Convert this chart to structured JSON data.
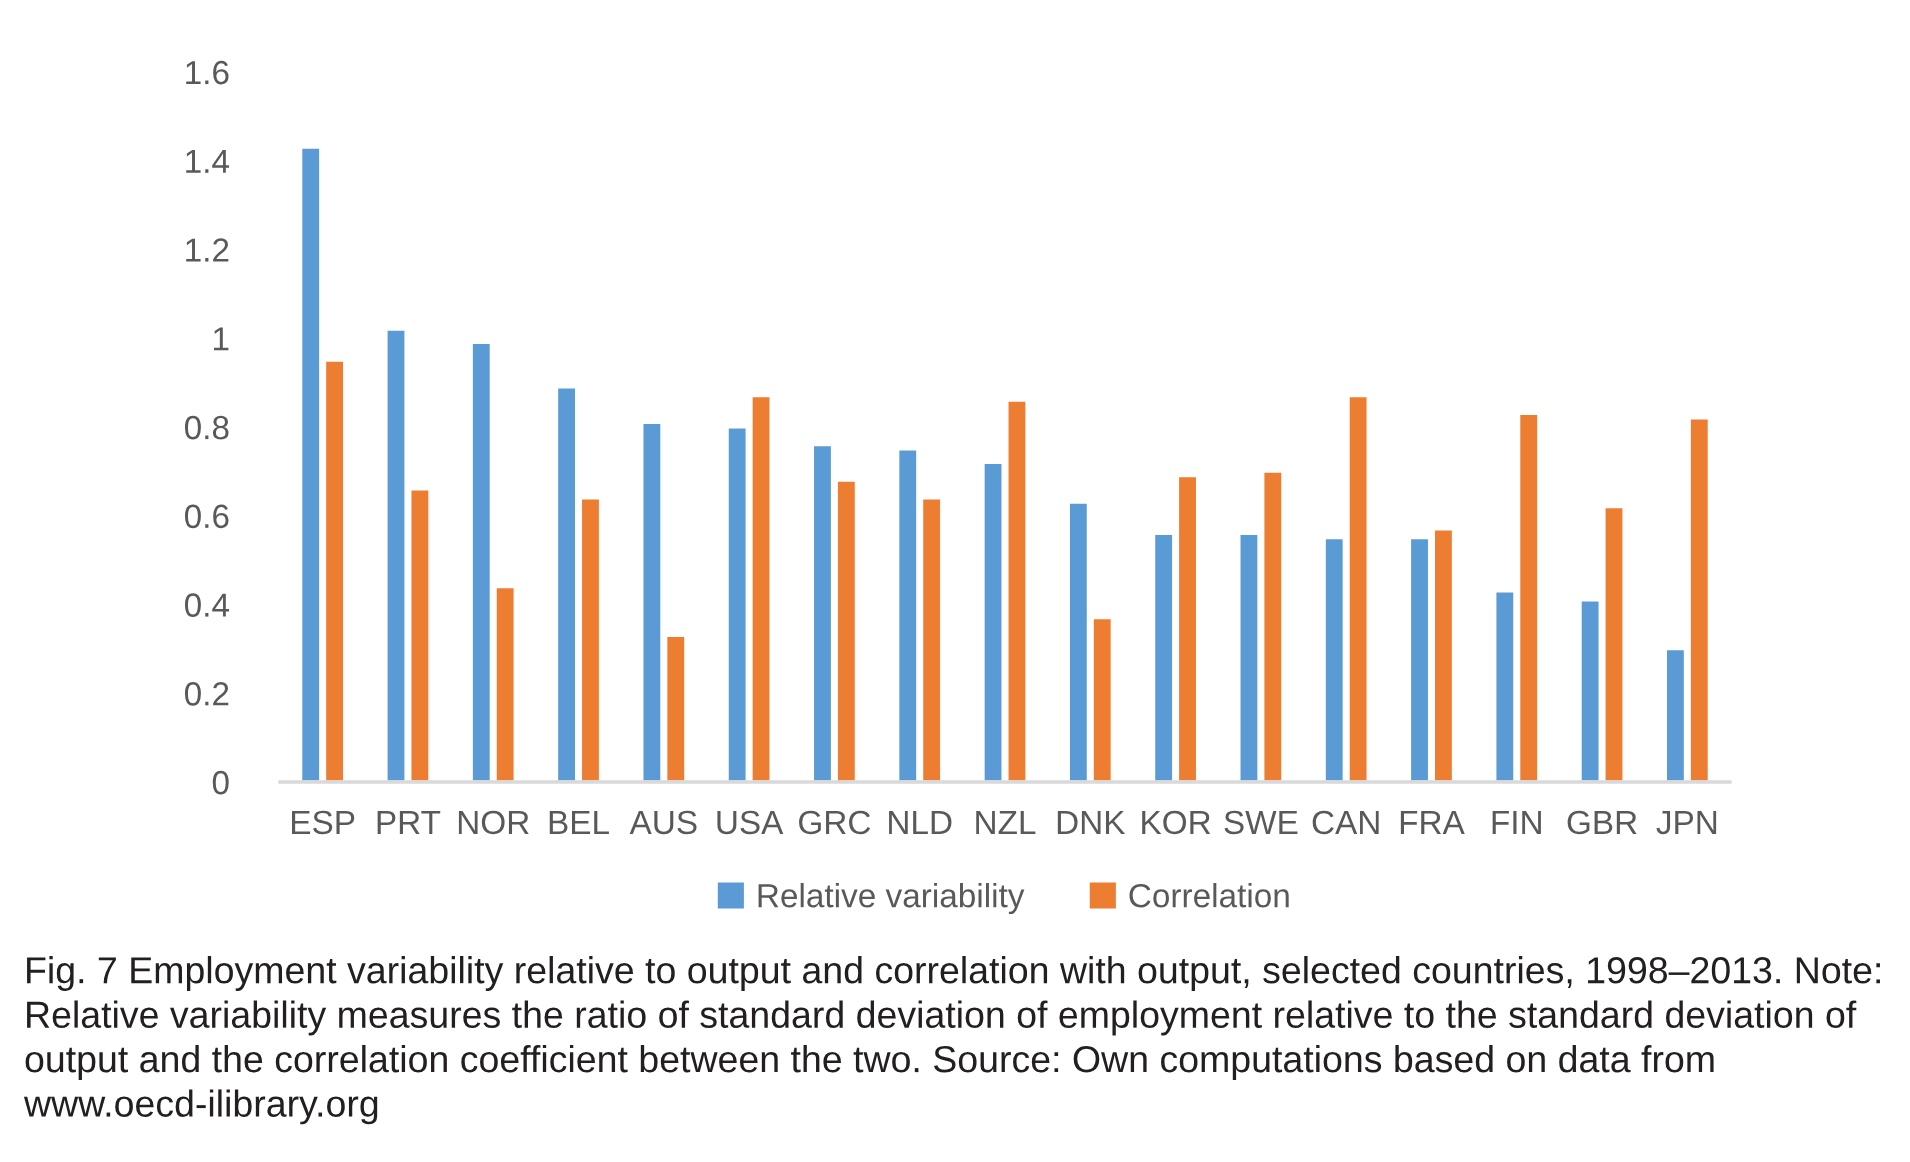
{
  "chart_data": {
    "type": "bar",
    "categories": [
      "ESP",
      "PRT",
      "NOR",
      "BEL",
      "AUS",
      "USA",
      "GRC",
      "NLD",
      "NZL",
      "DNK",
      "KOR",
      "SWE",
      "CAN",
      "FRA",
      "FIN",
      "GBR",
      "JPN"
    ],
    "series": [
      {
        "name": "Relative variability",
        "color": "#5b9bd5",
        "values": [
          1.43,
          1.02,
          0.99,
          0.89,
          0.81,
          0.8,
          0.76,
          0.75,
          0.72,
          0.63,
          0.56,
          0.56,
          0.55,
          0.55,
          0.43,
          0.41,
          0.3
        ]
      },
      {
        "name": "Correlation",
        "color": "#ed7d31",
        "values": [
          0.95,
          0.66,
          0.44,
          0.64,
          0.33,
          0.87,
          0.68,
          0.64,
          0.86,
          0.37,
          0.69,
          0.7,
          0.87,
          0.57,
          0.83,
          0.62,
          0.82
        ]
      }
    ],
    "ylim": [
      0,
      1.6
    ],
    "yticks": [
      0,
      0.2,
      0.4,
      0.6,
      0.8,
      1,
      1.2,
      1.4,
      1.6
    ],
    "legend": "bottom",
    "grid": false,
    "annotations": [
      "Fig. 7 Employment variability relative to output and correlation with output, selected countries, 1998–2013. Note: Relative variability measures the ratio of standard deviation of employment relative to the standard deviation of output and the correlation coefficient between the two. Source: Own computations based on data from www.oecd-ilibrary.org"
    ]
  }
}
